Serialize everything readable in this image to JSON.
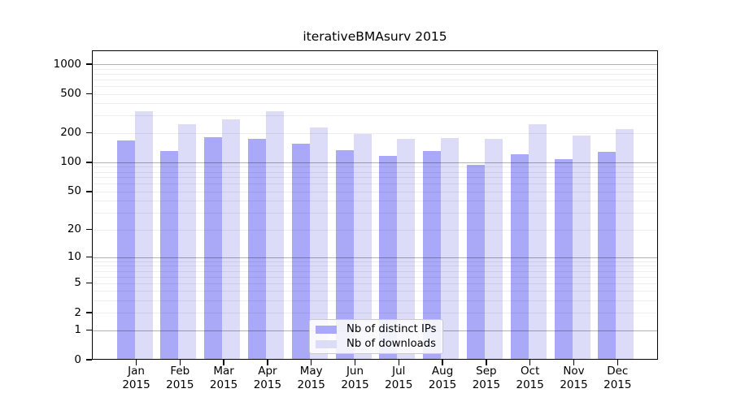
{
  "chart_data": {
    "type": "bar",
    "title": "iterativeBMAsurv 2015",
    "categories": [
      "Jan",
      "Feb",
      "Mar",
      "Apr",
      "May",
      "Jun",
      "Jul",
      "Aug",
      "Sep",
      "Oct",
      "Nov",
      "Dec"
    ],
    "x_tick_second_line": "2015",
    "series": [
      {
        "name": "Nb of distinct IPs",
        "color": "#a9a9f7",
        "values": [
          168,
          131,
          181,
          175,
          156,
          134,
          117,
          131,
          95,
          122,
          107,
          129
        ]
      },
      {
        "name": "Nb of downloads",
        "color": "#dcdcf8",
        "values": [
          332,
          246,
          276,
          330,
          228,
          196,
          175,
          178,
          175,
          246,
          188,
          218
        ]
      }
    ],
    "y_ticks": [
      0,
      1,
      2,
      5,
      10,
      20,
      50,
      100,
      200,
      500,
      1000
    ],
    "y_scale": "log10(1+x)",
    "y_axis_top_value": 1385,
    "grid": {
      "orientation": "horizontal",
      "major_at": [
        1,
        10,
        100,
        1000
      ],
      "minor": "multiples 2-9 of each decade",
      "legend_position": "bottom-center"
    }
  },
  "colors": {
    "background": "#ffffff",
    "axis": "#000000",
    "text": "#000000",
    "grid_major": "#b3b3b3",
    "grid_minor": "#ededed",
    "legend_border": "#cbcbcb"
  }
}
